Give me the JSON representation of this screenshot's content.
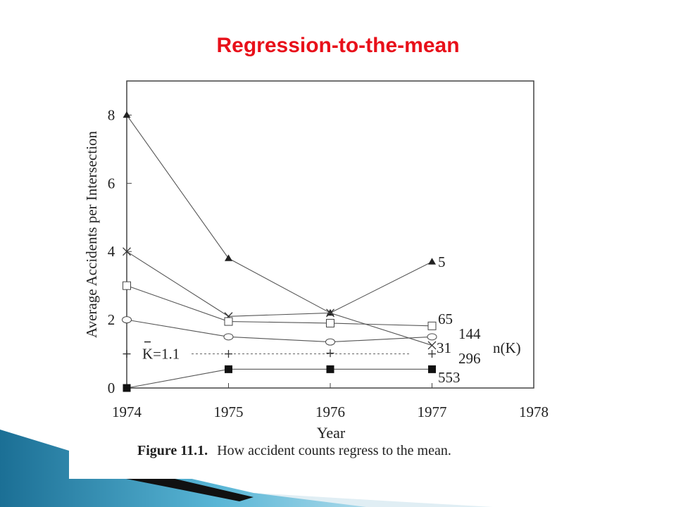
{
  "slide": {
    "title": "Regression-to-the-mean"
  },
  "caption": {
    "label": "Figure 11.1.",
    "text": "How accident counts regress to the mean."
  },
  "chart_data": {
    "type": "line",
    "xlabel": "Year",
    "ylabel": "Average Accidents per Intersection",
    "xlim": [
      1974,
      1978
    ],
    "ylim": [
      0,
      9
    ],
    "x_ticks": [
      1974,
      1975,
      1976,
      1977,
      1978
    ],
    "y_ticks": [
      0,
      2,
      4,
      6,
      8
    ],
    "x": [
      1974,
      1975,
      1976,
      1977
    ],
    "grid": false,
    "legend_title": "n(K)",
    "series": [
      {
        "name": "5",
        "marker": "triangle",
        "values": [
          8,
          3.8,
          2.2,
          3.7
        ]
      },
      {
        "name": "31",
        "marker": "cross",
        "values": [
          4,
          2.1,
          2.2,
          1.25
        ]
      },
      {
        "name": "65",
        "marker": "square-open",
        "values": [
          3,
          1.95,
          1.9,
          1.82
        ]
      },
      {
        "name": "144",
        "marker": "circle-open",
        "values": [
          2,
          1.5,
          1.35,
          1.5
        ]
      },
      {
        "name": "296",
        "marker": "plus",
        "values": [
          1,
          1,
          1.02,
          1
        ]
      },
      {
        "name": "553",
        "marker": "square-filled",
        "values": [
          0,
          0.55,
          0.55,
          0.55
        ]
      }
    ],
    "reference_line": {
      "label": "K=1.1",
      "value": 1.0
    }
  }
}
